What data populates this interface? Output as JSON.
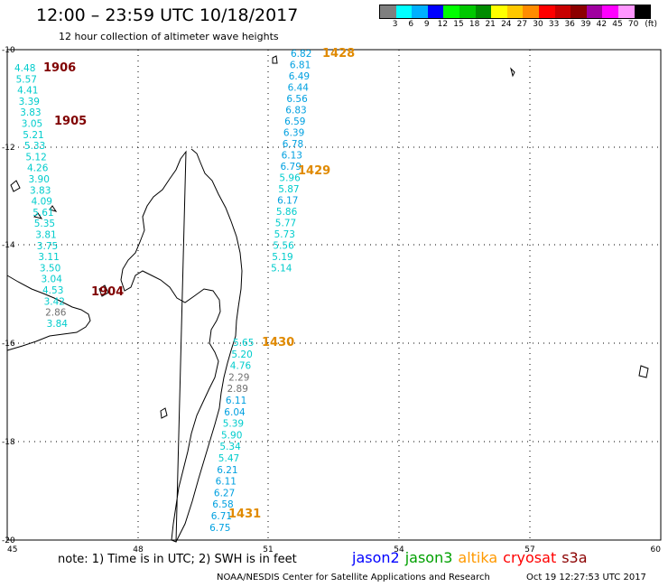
{
  "title": "12:00 – 23:59 UTC 10/18/2017",
  "subtitle": "12 hour collection of altimeter wave heights",
  "colorbar": {
    "colors": [
      "#7f7f7f",
      "#00ffff",
      "#00b0ff",
      "#0000ff",
      "#00ff00",
      "#00c800",
      "#008c00",
      "#ffff00",
      "#ffc800",
      "#ff8c00",
      "#ff0000",
      "#c80000",
      "#8c0000",
      "#a000a0",
      "#ff00ff",
      "#ff96ff",
      "#000000"
    ],
    "labels": [
      "3",
      "6",
      "9",
      "12",
      "15",
      "18",
      "21",
      "24",
      "27",
      "30",
      "33",
      "36",
      "39",
      "42",
      "45",
      "70",
      "(ft)"
    ]
  },
  "axes": {
    "lon_ticks": [
      "45",
      "48",
      "51",
      "54",
      "57",
      "60"
    ],
    "lat_ticks": [
      "-10",
      "-12",
      "-14",
      "-16",
      "-18",
      "-20"
    ]
  },
  "tracks": [
    {
      "label": "1906",
      "label_color": "#800000",
      "values": [
        {
          "v": "4.48",
          "c": "#00cccc"
        },
        {
          "v": "5.57",
          "c": "#00cccc"
        },
        {
          "v": "4.41",
          "c": "#00cccc"
        },
        {
          "v": "3.39",
          "c": "#00cccc"
        },
        {
          "v": "3.83",
          "c": "#00cccc"
        },
        {
          "v": "3.05",
          "c": "#00cccc"
        },
        {
          "v": "5.21",
          "c": "#00cccc"
        },
        {
          "v": "5.33",
          "c": "#00cccc"
        },
        {
          "v": "5.12",
          "c": "#00cccc"
        },
        {
          "v": "4.26",
          "c": "#00cccc"
        },
        {
          "v": "3.90",
          "c": "#00cccc"
        },
        {
          "v": "3.83",
          "c": "#00cccc"
        },
        {
          "v": "4.09",
          "c": "#00cccc"
        },
        {
          "v": "5.61",
          "c": "#00cccc"
        },
        {
          "v": "5.35",
          "c": "#00cccc"
        },
        {
          "v": "3.81",
          "c": "#00cccc"
        },
        {
          "v": "3.75",
          "c": "#00cccc"
        },
        {
          "v": "3.11",
          "c": "#00cccc"
        },
        {
          "v": "3.50",
          "c": "#00cccc"
        },
        {
          "v": "3.04",
          "c": "#00cccc"
        },
        {
          "v": "4.53",
          "c": "#00cccc"
        },
        {
          "v": "3.42",
          "c": "#00cccc"
        },
        {
          "v": "2.86",
          "c": "#707070"
        },
        {
          "v": "3.84",
          "c": "#00cccc"
        }
      ]
    },
    {
      "label": "1905",
      "label_color": "#800000"
    },
    {
      "label": "1904",
      "label_color": "#800000"
    },
    {
      "label": "1428",
      "label_color": "#e08a00",
      "values": [
        {
          "v": "6.82",
          "c": "#00a0e0"
        },
        {
          "v": "6.81",
          "c": "#00a0e0"
        },
        {
          "v": "6.49",
          "c": "#00a0e0"
        },
        {
          "v": "6.44",
          "c": "#00a0e0"
        },
        {
          "v": "6.56",
          "c": "#00a0e0"
        },
        {
          "v": "6.83",
          "c": "#00a0e0"
        },
        {
          "v": "6.59",
          "c": "#00a0e0"
        },
        {
          "v": "6.39",
          "c": "#00a0e0"
        },
        {
          "v": "6.78",
          "c": "#00a0e0"
        },
        {
          "v": "6.13",
          "c": "#00a0e0"
        },
        {
          "v": "6.79",
          "c": "#00a0e0"
        },
        {
          "v": "5.96",
          "c": "#00cccc"
        },
        {
          "v": "5.87",
          "c": "#00cccc"
        },
        {
          "v": "6.17",
          "c": "#00a0e0"
        },
        {
          "v": "5.86",
          "c": "#00cccc"
        },
        {
          "v": "5.77",
          "c": "#00cccc"
        },
        {
          "v": "5.73",
          "c": "#00cccc"
        },
        {
          "v": "5.56",
          "c": "#00cccc"
        },
        {
          "v": "5.19",
          "c": "#00cccc"
        },
        {
          "v": "5.14",
          "c": "#00cccc"
        }
      ]
    },
    {
      "label": "1429",
      "label_color": "#e08a00"
    },
    {
      "label": "1430",
      "label_color": "#e08a00",
      "values": [
        {
          "v": "5.65",
          "c": "#00cccc"
        },
        {
          "v": "5.20",
          "c": "#00cccc"
        },
        {
          "v": "4.76",
          "c": "#00cccc"
        },
        {
          "v": "2.29",
          "c": "#707070"
        },
        {
          "v": "2.89",
          "c": "#707070"
        },
        {
          "v": "6.11",
          "c": "#00a0e0"
        },
        {
          "v": "6.04",
          "c": "#00a0e0"
        },
        {
          "v": "5.39",
          "c": "#00cccc"
        },
        {
          "v": "5.90",
          "c": "#00cccc"
        },
        {
          "v": "5.34",
          "c": "#00cccc"
        },
        {
          "v": "5.47",
          "c": "#00cccc"
        },
        {
          "v": "6.21",
          "c": "#00a0e0"
        },
        {
          "v": "6.11",
          "c": "#00a0e0"
        },
        {
          "v": "6.27",
          "c": "#00a0e0"
        },
        {
          "v": "6.58",
          "c": "#00a0e0"
        },
        {
          "v": "6.71",
          "c": "#00a0e0"
        },
        {
          "v": "6.75",
          "c": "#00a0e0"
        }
      ]
    },
    {
      "label": "1431",
      "label_color": "#e08a00"
    }
  ],
  "note": "note:  1) Time is in UTC;  2) SWH is in feet",
  "legend": [
    {
      "name": "jason2",
      "color": "#0000ff"
    },
    {
      "name": "jason3",
      "color": "#00a000"
    },
    {
      "name": "altika",
      "color": "#ff9900"
    },
    {
      "name": "cryosat",
      "color": "#ff0000"
    },
    {
      "name": "s3a",
      "color": "#8b0000"
    }
  ],
  "credit": "NOAA/NESDIS Center for Satellite Applications and Research",
  "timestamp": "Oct 19 12:27:53 UTC 2017"
}
